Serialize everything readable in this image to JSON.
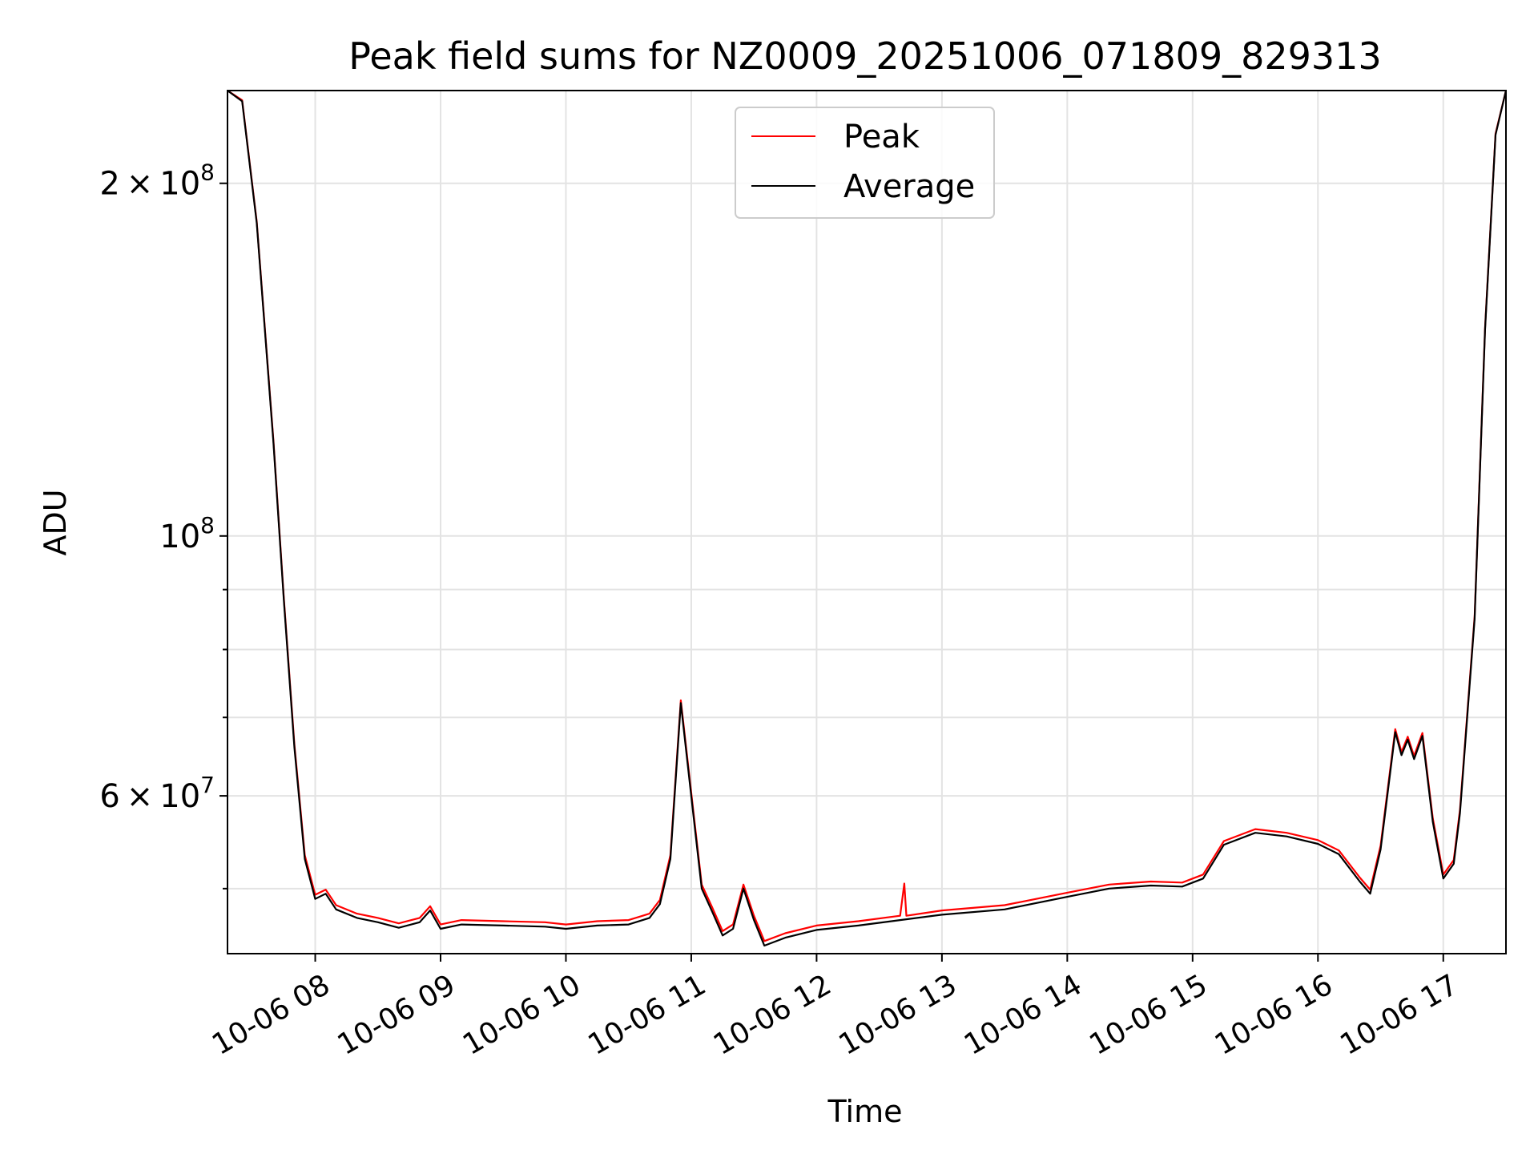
{
  "chart_data": {
    "type": "line",
    "title": "Peak field sums for NZ0009_20251006_071809_829313",
    "xlabel": "Time",
    "ylabel": "ADU",
    "xlim": [
      "2025-10-06 07:18",
      "2025-10-06 17:30"
    ],
    "ylim": [
      44000000,
      240000000
    ],
    "yscale": "log",
    "grid": true,
    "legend": "upper center",
    "x_ticks": [
      "10-06 08",
      "10-06 09",
      "10-06 10",
      "10-06 11",
      "10-06 12",
      "10-06 13",
      "10-06 14",
      "10-06 15",
      "10-06 16",
      "10-06 17"
    ],
    "y_ticks": [
      {
        "value": 200000000,
        "mantissa": "2",
        "times": "×",
        "base": "10",
        "exp": "8"
      },
      {
        "value": 100000000,
        "mantissa": "",
        "times": "",
        "base": "10",
        "exp": "8"
      },
      {
        "value": 60000000,
        "mantissa": "6",
        "times": "×",
        "base": "10",
        "exp": "7"
      }
    ],
    "y_minor_ticks": [
      50000000,
      70000000,
      80000000,
      90000000
    ],
    "series": [
      {
        "name": "Average",
        "color": "#000000",
        "points": [
          [
            "2025-10-06 07:18",
            240000000
          ],
          [
            "2025-10-06 07:25",
            235000000
          ],
          [
            "2025-10-06 07:32",
            185000000
          ],
          [
            "2025-10-06 07:40",
            120000000
          ],
          [
            "2025-10-06 07:45",
            88000000
          ],
          [
            "2025-10-06 07:50",
            66000000
          ],
          [
            "2025-10-06 07:55",
            53000000
          ],
          [
            "2025-10-06 08:00",
            49000000
          ],
          [
            "2025-10-06 08:05",
            49500000
          ],
          [
            "2025-10-06 08:10",
            48000000
          ],
          [
            "2025-10-06 08:20",
            47200000
          ],
          [
            "2025-10-06 08:30",
            46800000
          ],
          [
            "2025-10-06 08:40",
            46300000
          ],
          [
            "2025-10-06 08:50",
            46800000
          ],
          [
            "2025-10-06 08:55",
            47900000
          ],
          [
            "2025-10-06 09:00",
            46200000
          ],
          [
            "2025-10-06 09:10",
            46600000
          ],
          [
            "2025-10-06 09:30",
            46500000
          ],
          [
            "2025-10-06 09:50",
            46400000
          ],
          [
            "2025-10-06 10:00",
            46200000
          ],
          [
            "2025-10-06 10:15",
            46500000
          ],
          [
            "2025-10-06 10:30",
            46600000
          ],
          [
            "2025-10-06 10:40",
            47200000
          ],
          [
            "2025-10-06 10:45",
            48500000
          ],
          [
            "2025-10-06 10:50",
            53000000
          ],
          [
            "2025-10-06 10:55",
            72000000
          ],
          [
            "2025-10-06 11:00",
            60000000
          ],
          [
            "2025-10-06 11:05",
            50000000
          ],
          [
            "2025-10-06 11:10",
            47800000
          ],
          [
            "2025-10-06 11:15",
            45600000
          ],
          [
            "2025-10-06 11:20",
            46200000
          ],
          [
            "2025-10-06 11:25",
            50000000
          ],
          [
            "2025-10-06 11:30",
            47000000
          ],
          [
            "2025-10-06 11:35",
            44700000
          ],
          [
            "2025-10-06 11:45",
            45400000
          ],
          [
            "2025-10-06 12:00",
            46100000
          ],
          [
            "2025-10-06 12:20",
            46500000
          ],
          [
            "2025-10-06 12:40",
            47000000
          ],
          [
            "2025-10-06 13:00",
            47500000
          ],
          [
            "2025-10-06 13:30",
            48000000
          ],
          [
            "2025-10-06 14:00",
            49200000
          ],
          [
            "2025-10-06 14:20",
            50000000
          ],
          [
            "2025-10-06 14:40",
            50300000
          ],
          [
            "2025-10-06 14:55",
            50200000
          ],
          [
            "2025-10-06 15:05",
            51000000
          ],
          [
            "2025-10-06 15:15",
            54500000
          ],
          [
            "2025-10-06 15:30",
            55800000
          ],
          [
            "2025-10-06 15:45",
            55400000
          ],
          [
            "2025-10-06 16:00",
            54600000
          ],
          [
            "2025-10-06 16:10",
            53500000
          ],
          [
            "2025-10-06 16:20",
            50700000
          ],
          [
            "2025-10-06 16:25",
            49500000
          ],
          [
            "2025-10-06 16:30",
            54000000
          ],
          [
            "2025-10-06 16:37",
            68000000
          ],
          [
            "2025-10-06 16:40",
            65000000
          ],
          [
            "2025-10-06 16:43",
            67000000
          ],
          [
            "2025-10-06 16:46",
            64500000
          ],
          [
            "2025-10-06 16:50",
            67500000
          ],
          [
            "2025-10-06 16:55",
            57000000
          ],
          [
            "2025-10-06 17:00",
            51000000
          ],
          [
            "2025-10-06 17:05",
            52500000
          ],
          [
            "2025-10-06 17:08",
            58000000
          ],
          [
            "2025-10-06 17:15",
            85000000
          ],
          [
            "2025-10-06 17:20",
            150000000
          ],
          [
            "2025-10-06 17:25",
            220000000
          ],
          [
            "2025-10-06 17:30",
            240000000
          ]
        ]
      },
      {
        "name": "Peak",
        "color": "#ff0000",
        "points": [
          [
            "2025-10-06 07:18",
            240000000
          ],
          [
            "2025-10-06 07:25",
            235500000
          ],
          [
            "2025-10-06 07:32",
            185500000
          ],
          [
            "2025-10-06 07:40",
            120500000
          ],
          [
            "2025-10-06 07:45",
            88400000
          ],
          [
            "2025-10-06 07:50",
            66400000
          ],
          [
            "2025-10-06 07:55",
            53400000
          ],
          [
            "2025-10-06 08:00",
            49400000
          ],
          [
            "2025-10-06 08:05",
            49900000
          ],
          [
            "2025-10-06 08:10",
            48400000
          ],
          [
            "2025-10-06 08:20",
            47600000
          ],
          [
            "2025-10-06 08:30",
            47200000
          ],
          [
            "2025-10-06 08:40",
            46700000
          ],
          [
            "2025-10-06 08:50",
            47200000
          ],
          [
            "2025-10-06 08:55",
            48300000
          ],
          [
            "2025-10-06 09:00",
            46600000
          ],
          [
            "2025-10-06 09:10",
            47000000
          ],
          [
            "2025-10-06 09:30",
            46900000
          ],
          [
            "2025-10-06 09:50",
            46800000
          ],
          [
            "2025-10-06 10:00",
            46600000
          ],
          [
            "2025-10-06 10:15",
            46900000
          ],
          [
            "2025-10-06 10:30",
            47000000
          ],
          [
            "2025-10-06 10:40",
            47600000
          ],
          [
            "2025-10-06 10:45",
            48900000
          ],
          [
            "2025-10-06 10:50",
            53400000
          ],
          [
            "2025-10-06 10:55",
            72400000
          ],
          [
            "2025-10-06 11:00",
            60400000
          ],
          [
            "2025-10-06 11:05",
            50400000
          ],
          [
            "2025-10-06 11:10",
            48200000
          ],
          [
            "2025-10-06 11:15",
            46000000
          ],
          [
            "2025-10-06 11:20",
            46600000
          ],
          [
            "2025-10-06 11:25",
            50400000
          ],
          [
            "2025-10-06 11:30",
            47400000
          ],
          [
            "2025-10-06 11:35",
            45100000
          ],
          [
            "2025-10-06 11:45",
            45800000
          ],
          [
            "2025-10-06 12:00",
            46500000
          ],
          [
            "2025-10-06 12:20",
            46900000
          ],
          [
            "2025-10-06 12:40",
            47400000
          ],
          [
            "2025-10-06 12:42",
            50500000
          ],
          [
            "2025-10-06 12:43",
            47400000
          ],
          [
            "2025-10-06 13:00",
            47900000
          ],
          [
            "2025-10-06 13:30",
            48400000
          ],
          [
            "2025-10-06 14:00",
            49600000
          ],
          [
            "2025-10-06 14:20",
            50400000
          ],
          [
            "2025-10-06 14:40",
            50700000
          ],
          [
            "2025-10-06 14:55",
            50600000
          ],
          [
            "2025-10-06 15:05",
            51400000
          ],
          [
            "2025-10-06 15:15",
            54900000
          ],
          [
            "2025-10-06 15:30",
            56200000
          ],
          [
            "2025-10-06 15:45",
            55800000
          ],
          [
            "2025-10-06 16:00",
            55000000
          ],
          [
            "2025-10-06 16:10",
            53900000
          ],
          [
            "2025-10-06 16:20",
            51100000
          ],
          [
            "2025-10-06 16:25",
            49900000
          ],
          [
            "2025-10-06 16:30",
            54400000
          ],
          [
            "2025-10-06 16:37",
            68400000
          ],
          [
            "2025-10-06 16:40",
            65400000
          ],
          [
            "2025-10-06 16:43",
            67400000
          ],
          [
            "2025-10-06 16:46",
            64900000
          ],
          [
            "2025-10-06 16:50",
            67900000
          ],
          [
            "2025-10-06 16:55",
            57400000
          ],
          [
            "2025-10-06 17:00",
            51400000
          ],
          [
            "2025-10-06 17:05",
            52900000
          ],
          [
            "2025-10-06 17:08",
            58400000
          ],
          [
            "2025-10-06 17:15",
            85400000
          ],
          [
            "2025-10-06 17:20",
            150500000
          ],
          [
            "2025-10-06 17:25",
            220500000
          ],
          [
            "2025-10-06 17:30",
            240000000
          ]
        ]
      }
    ]
  }
}
